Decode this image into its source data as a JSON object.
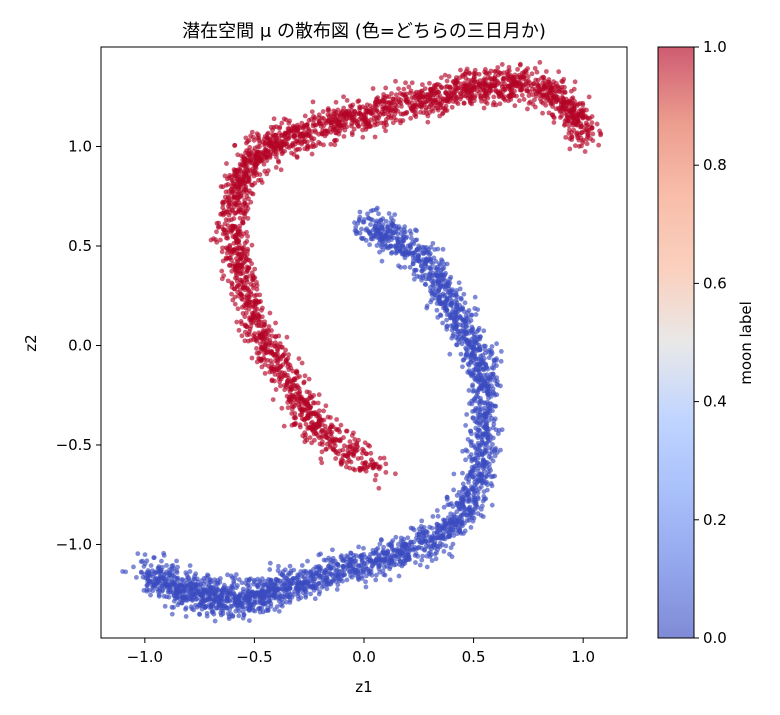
{
  "chart_data": {
    "type": "scatter",
    "title": "潜在空間 μ の散布図 (色=どちらの三日月か)",
    "xlabel": "z1",
    "ylabel": "z2",
    "xlim": [
      -1.2,
      1.2
    ],
    "ylim": [
      -1.47,
      1.5
    ],
    "x_ticks": [
      -1.0,
      -0.5,
      0.0,
      0.5,
      1.0
    ],
    "x_tick_labels": [
      "−1.0",
      "−0.5",
      "0.0",
      "0.5",
      "1.0"
    ],
    "y_ticks": [
      -1.0,
      -0.5,
      0.0,
      0.5,
      1.0
    ],
    "y_tick_labels": [
      "−1.0",
      "−0.5",
      "0.0",
      "0.5",
      "1.0"
    ],
    "grid": false,
    "colormap": "coolwarm",
    "colorbar": {
      "label": "moon label",
      "range": [
        0.0,
        1.0
      ],
      "ticks": [
        0.0,
        0.2,
        0.4,
        0.6,
        0.8,
        1.0
      ],
      "tick_labels": [
        "0.0",
        "0.2",
        "0.4",
        "0.6",
        "0.8",
        "1.0"
      ]
    },
    "colors": {
      "label_0": "#3b4cc0",
      "label_1": "#b40426"
    },
    "series": [
      {
        "label_value": 1,
        "x": [
          0.07,
          -0.15,
          -0.25,
          -0.35,
          -0.45,
          -0.52,
          -0.58,
          -0.6,
          -0.58,
          -0.52,
          -0.42,
          -0.3,
          -0.15,
          0.0,
          0.15,
          0.3,
          0.45,
          0.58,
          0.7,
          0.85,
          0.95,
          1.02
        ],
        "y": [
          -0.62,
          -0.48,
          -0.35,
          -0.18,
          0.0,
          0.2,
          0.4,
          0.6,
          0.8,
          0.92,
          1.0,
          1.06,
          1.12,
          1.16,
          1.2,
          1.24,
          1.28,
          1.31,
          1.32,
          1.28,
          1.18,
          1.05
        ]
      },
      {
        "label_value": 0,
        "x": [
          -1.0,
          -0.9,
          -0.8,
          -0.7,
          -0.6,
          -0.5,
          -0.4,
          -0.3,
          -0.15,
          0.0,
          0.15,
          0.3,
          0.42,
          0.5,
          0.54,
          0.55,
          0.55,
          0.5,
          0.42,
          0.35,
          0.25,
          0.12,
          0.0
        ],
        "y": [
          -1.15,
          -1.2,
          -1.24,
          -1.26,
          -1.28,
          -1.26,
          -1.23,
          -1.2,
          -1.15,
          -1.1,
          -1.05,
          -0.98,
          -0.9,
          -0.75,
          -0.55,
          -0.35,
          -0.15,
          0.0,
          0.15,
          0.3,
          0.45,
          0.55,
          0.62
        ]
      }
    ]
  }
}
